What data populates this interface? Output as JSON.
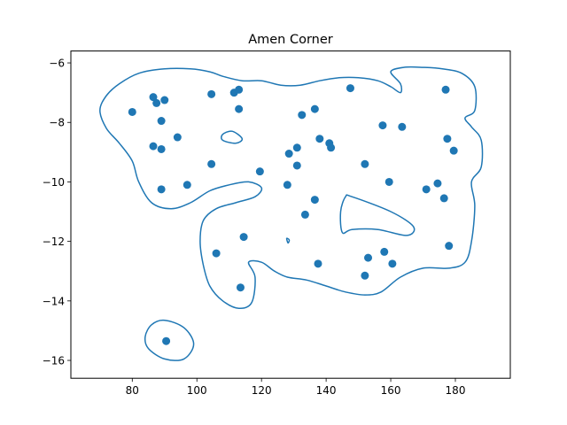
{
  "chart_data": {
    "type": "scatter",
    "title": "Amen Corner",
    "xlabel": "",
    "ylabel": "",
    "xlim": [
      61,
      197
    ],
    "ylim": [
      -16.6,
      -5.6
    ],
    "xticks": [
      80,
      100,
      120,
      140,
      160,
      180
    ],
    "yticks": [
      -16,
      -14,
      -12,
      -10,
      -8,
      -6
    ],
    "grid": false,
    "legend": "none",
    "colors": {
      "points": "#1f77b4",
      "contour": "#1f77b4",
      "axes": "#000000"
    },
    "points": [
      {
        "x": 80,
        "y": -7.65
      },
      {
        "x": 86.5,
        "y": -7.15
      },
      {
        "x": 87.5,
        "y": -7.35
      },
      {
        "x": 90,
        "y": -7.25
      },
      {
        "x": 89,
        "y": -7.95
      },
      {
        "x": 86.5,
        "y": -8.8
      },
      {
        "x": 89,
        "y": -8.9
      },
      {
        "x": 94,
        "y": -8.5
      },
      {
        "x": 89,
        "y": -10.25
      },
      {
        "x": 97,
        "y": -10.1
      },
      {
        "x": 104.5,
        "y": -7.05
      },
      {
        "x": 111.5,
        "y": -7.0
      },
      {
        "x": 113,
        "y": -6.9
      },
      {
        "x": 113,
        "y": -7.55
      },
      {
        "x": 104.5,
        "y": -9.4
      },
      {
        "x": 119.5,
        "y": -9.65
      },
      {
        "x": 106,
        "y": -12.4
      },
      {
        "x": 114.5,
        "y": -11.85
      },
      {
        "x": 113.5,
        "y": -13.55
      },
      {
        "x": 132.5,
        "y": -7.75
      },
      {
        "x": 136.5,
        "y": -7.55
      },
      {
        "x": 147.5,
        "y": -6.85
      },
      {
        "x": 138,
        "y": -8.55
      },
      {
        "x": 141,
        "y": -8.7
      },
      {
        "x": 141.5,
        "y": -8.85
      },
      {
        "x": 131,
        "y": -8.85
      },
      {
        "x": 128.5,
        "y": -9.05
      },
      {
        "x": 131,
        "y": -9.45
      },
      {
        "x": 128,
        "y": -10.1
      },
      {
        "x": 136.5,
        "y": -10.6
      },
      {
        "x": 133.5,
        "y": -11.1
      },
      {
        "x": 137.5,
        "y": -12.75
      },
      {
        "x": 152,
        "y": -9.4
      },
      {
        "x": 157.5,
        "y": -8.1
      },
      {
        "x": 163.5,
        "y": -8.15
      },
      {
        "x": 159.5,
        "y": -10.0
      },
      {
        "x": 171,
        "y": -10.25
      },
      {
        "x": 174.5,
        "y": -10.05
      },
      {
        "x": 176.5,
        "y": -10.55
      },
      {
        "x": 177,
        "y": -6.9
      },
      {
        "x": 177.5,
        "y": -8.55
      },
      {
        "x": 179.5,
        "y": -8.95
      },
      {
        "x": 178,
        "y": -12.15
      },
      {
        "x": 158,
        "y": -12.35
      },
      {
        "x": 153,
        "y": -12.55
      },
      {
        "x": 160.5,
        "y": -12.75
      },
      {
        "x": 152,
        "y": -13.15
      },
      {
        "x": 90.5,
        "y": -15.35
      }
    ],
    "contours": [
      [
        [
          108,
          -6.45
        ],
        [
          114,
          -6.6
        ],
        [
          120,
          -6.6
        ],
        [
          126,
          -6.75
        ],
        [
          132,
          -6.75
        ],
        [
          138,
          -6.6
        ],
        [
          144,
          -6.5
        ],
        [
          150,
          -6.5
        ],
        [
          156,
          -6.6
        ],
        [
          160,
          -6.8
        ],
        [
          163,
          -7.0
        ],
        [
          163,
          -6.7
        ],
        [
          160,
          -6.3
        ],
        [
          164,
          -6.15
        ],
        [
          170,
          -6.15
        ],
        [
          176,
          -6.2
        ],
        [
          182,
          -6.35
        ],
        [
          186,
          -6.8
        ],
        [
          186,
          -7.6
        ],
        [
          183,
          -7.85
        ],
        [
          185,
          -8.15
        ],
        [
          188,
          -8.6
        ],
        [
          188,
          -9.5
        ],
        [
          185,
          -10.0
        ],
        [
          186,
          -10.8
        ],
        [
          185,
          -12.0
        ],
        [
          183,
          -12.7
        ],
        [
          178,
          -12.9
        ],
        [
          170,
          -12.9
        ],
        [
          163,
          -13.2
        ],
        [
          157,
          -13.7
        ],
        [
          152,
          -13.8
        ],
        [
          146,
          -13.7
        ],
        [
          140,
          -13.5
        ],
        [
          134,
          -13.3
        ],
        [
          128,
          -13.2
        ],
        [
          124,
          -13.0
        ],
        [
          120,
          -12.7
        ],
        [
          116,
          -12.7
        ],
        [
          118,
          -13.2
        ],
        [
          117,
          -14.05
        ],
        [
          113,
          -14.25
        ],
        [
          108,
          -14.0
        ],
        [
          104,
          -13.5
        ],
        [
          102,
          -12.8
        ],
        [
          101,
          -12.0
        ],
        [
          102,
          -11.3
        ],
        [
          106,
          -10.9
        ],
        [
          112,
          -10.7
        ],
        [
          118,
          -10.5
        ],
        [
          120,
          -10.2
        ],
        [
          116,
          -10.0
        ],
        [
          110,
          -10.1
        ],
        [
          104,
          -10.3
        ],
        [
          98,
          -10.7
        ],
        [
          92,
          -10.9
        ],
        [
          86,
          -10.7
        ],
        [
          82,
          -10.0
        ],
        [
          80,
          -9.3
        ],
        [
          76,
          -8.7
        ],
        [
          72,
          -8.2
        ],
        [
          70,
          -7.6
        ],
        [
          72,
          -7.1
        ],
        [
          76,
          -6.7
        ],
        [
          82,
          -6.35
        ],
        [
          90,
          -6.2
        ],
        [
          98,
          -6.2
        ],
        [
          104,
          -6.3
        ],
        [
          108,
          -6.45
        ]
      ],
      [
        [
          148,
          -10.5
        ],
        [
          160,
          -11.0
        ],
        [
          167,
          -11.5
        ],
        [
          165,
          -11.8
        ],
        [
          156,
          -11.6
        ],
        [
          148,
          -11.6
        ],
        [
          145,
          -11.7
        ],
        [
          144.5,
          -11.0
        ],
        [
          146,
          -10.5
        ],
        [
          148,
          -10.5
        ]
      ],
      [
        [
          108,
          -8.4
        ],
        [
          111,
          -8.3
        ],
        [
          114,
          -8.55
        ],
        [
          112,
          -8.7
        ],
        [
          108,
          -8.6
        ],
        [
          108,
          -8.4
        ]
      ],
      [
        [
          127.8,
          -11.9
        ],
        [
          128.6,
          -11.95
        ],
        [
          128.2,
          -12.05
        ],
        [
          127.8,
          -11.9
        ]
      ],
      [
        [
          90,
          -14.65
        ],
        [
          96,
          -14.9
        ],
        [
          99,
          -15.45
        ],
        [
          96,
          -15.95
        ],
        [
          90,
          -15.95
        ],
        [
          85,
          -15.6
        ],
        [
          84,
          -15.2
        ],
        [
          86,
          -14.8
        ],
        [
          90,
          -14.65
        ]
      ]
    ]
  }
}
